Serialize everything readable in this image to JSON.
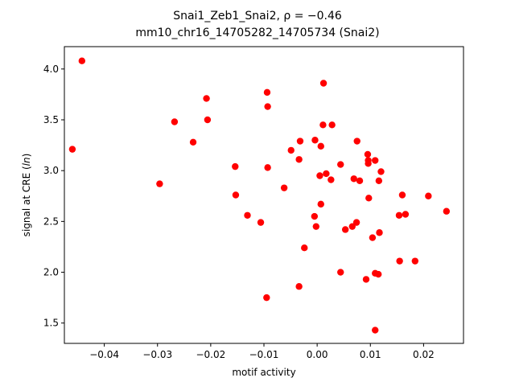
{
  "chart_data": {
    "type": "scatter",
    "title_line1": "Snai1_Zeb1_Snai2, ρ = −0.46",
    "title_line2": "mm10_chr16_14705282_14705734 (Snai2)",
    "xlabel": "motif activity",
    "ylabel_prefix": "signal at CRE (",
    "ylabel_italic": "ln",
    "ylabel_suffix": ")",
    "xlim": [
      -0.0475,
      0.0275
    ],
    "ylim": [
      1.3,
      4.22
    ],
    "x_ticks": [
      -0.04,
      -0.03,
      -0.02,
      -0.01,
      0.0,
      0.01,
      0.02
    ],
    "x_tick_labels": [
      "−0.04",
      "−0.03",
      "−0.02",
      "−0.01",
      "0.00",
      "0.01",
      "0.02"
    ],
    "y_ticks": [
      1.5,
      2.0,
      2.5,
      3.0,
      3.5,
      4.0
    ],
    "y_tick_labels": [
      "1.5",
      "2.0",
      "2.5",
      "3.0",
      "3.5",
      "4.0"
    ],
    "marker_color": "#ff0000",
    "grid": false,
    "points": [
      {
        "x": -0.0442,
        "y": 4.08
      },
      {
        "x": -0.046,
        "y": 3.21
      },
      {
        "x": -0.0296,
        "y": 2.87
      },
      {
        "x": -0.0268,
        "y": 3.48
      },
      {
        "x": -0.0208,
        "y": 3.71
      },
      {
        "x": -0.0206,
        "y": 3.5
      },
      {
        "x": -0.0233,
        "y": 3.28
      },
      {
        "x": -0.0154,
        "y": 3.04
      },
      {
        "x": -0.0153,
        "y": 2.76
      },
      {
        "x": -0.0131,
        "y": 2.56
      },
      {
        "x": -0.0106,
        "y": 2.49
      },
      {
        "x": -0.0094,
        "y": 3.77
      },
      {
        "x": -0.0093,
        "y": 3.63
      },
      {
        "x": -0.0093,
        "y": 3.03
      },
      {
        "x": -0.0095,
        "y": 1.75
      },
      {
        "x": -0.0062,
        "y": 2.83
      },
      {
        "x": -0.0049,
        "y": 3.2
      },
      {
        "x": -0.0032,
        "y": 3.29
      },
      {
        "x": -0.0034,
        "y": 3.11
      },
      {
        "x": -0.0034,
        "y": 1.86
      },
      {
        "x": -0.0024,
        "y": 2.24
      },
      {
        "x": -0.0004,
        "y": 3.3
      },
      {
        "x": 0.0007,
        "y": 3.24
      },
      {
        "x": 0.0005,
        "y": 2.95
      },
      {
        "x": 0.0007,
        "y": 2.67
      },
      {
        "x": -0.0005,
        "y": 2.55
      },
      {
        "x": -0.0002,
        "y": 2.45
      },
      {
        "x": 0.0012,
        "y": 3.86
      },
      {
        "x": 0.0011,
        "y": 3.45
      },
      {
        "x": 0.0028,
        "y": 3.45
      },
      {
        "x": 0.0017,
        "y": 2.97
      },
      {
        "x": 0.0026,
        "y": 2.91
      },
      {
        "x": 0.0044,
        "y": 3.06
      },
      {
        "x": 0.0044,
        "y": 2.0
      },
      {
        "x": 0.0053,
        "y": 2.42
      },
      {
        "x": 0.0066,
        "y": 2.45
      },
      {
        "x": 0.0069,
        "y": 2.92
      },
      {
        "x": 0.0074,
        "y": 2.49
      },
      {
        "x": 0.0075,
        "y": 3.29
      },
      {
        "x": 0.008,
        "y": 2.9
      },
      {
        "x": 0.0092,
        "y": 1.93
      },
      {
        "x": 0.0095,
        "y": 3.16
      },
      {
        "x": 0.0096,
        "y": 3.1
      },
      {
        "x": 0.0096,
        "y": 3.07
      },
      {
        "x": 0.0097,
        "y": 2.73
      },
      {
        "x": 0.0104,
        "y": 2.34
      },
      {
        "x": 0.0109,
        "y": 3.1
      },
      {
        "x": 0.0109,
        "y": 1.99
      },
      {
        "x": 0.0109,
        "y": 1.43
      },
      {
        "x": 0.0115,
        "y": 1.98
      },
      {
        "x": 0.0116,
        "y": 2.9
      },
      {
        "x": 0.0117,
        "y": 2.39
      },
      {
        "x": 0.012,
        "y": 2.99
      },
      {
        "x": 0.0154,
        "y": 2.56
      },
      {
        "x": 0.0155,
        "y": 2.11
      },
      {
        "x": 0.016,
        "y": 2.76
      },
      {
        "x": 0.0166,
        "y": 2.57
      },
      {
        "x": 0.0184,
        "y": 2.11
      },
      {
        "x": 0.0209,
        "y": 2.75
      },
      {
        "x": 0.0243,
        "y": 2.6
      }
    ]
  }
}
